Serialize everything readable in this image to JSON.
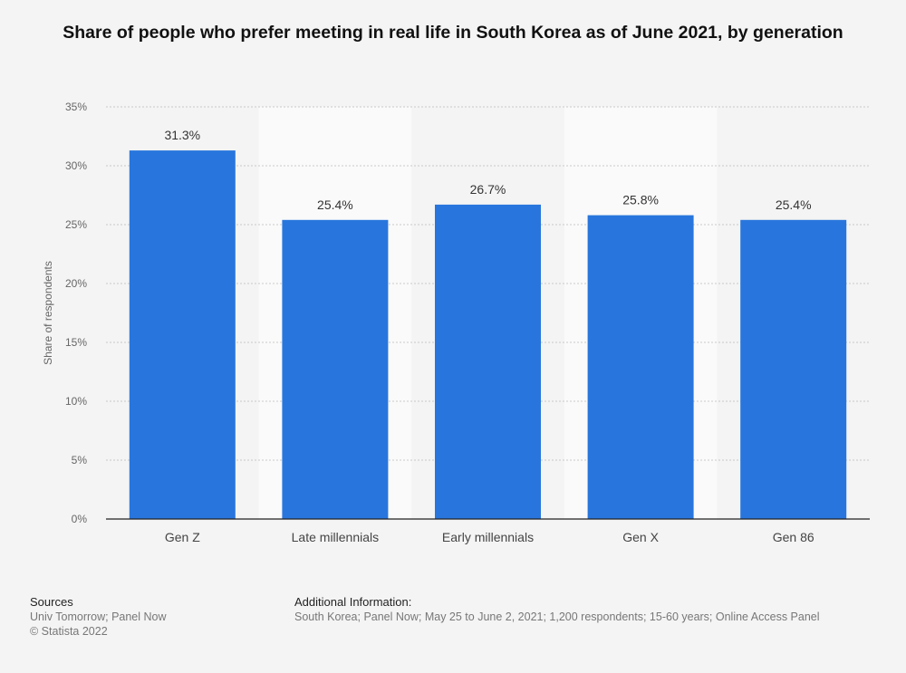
{
  "chart_data": {
    "type": "bar",
    "title": "Share of people who prefer meeting in real life in South Korea as of June 2021, by generation",
    "categories": [
      "Gen Z",
      "Late millennials",
      "Early millennials",
      "Gen X",
      "Gen 86"
    ],
    "values": [
      31.3,
      25.4,
      26.7,
      25.8,
      25.4
    ],
    "value_labels": [
      "31.3%",
      "25.4%",
      "26.7%",
      "25.8%",
      "25.4%"
    ],
    "xlabel": "",
    "ylabel": "Share of respondents",
    "ylim": [
      0,
      35
    ],
    "yticks": [
      0,
      5,
      10,
      15,
      20,
      25,
      30,
      35
    ],
    "ytick_labels": [
      "0%",
      "5%",
      "10%",
      "15%",
      "20%",
      "25%",
      "30%",
      "35%"
    ],
    "grid": true,
    "bar_color": "#2876dd"
  },
  "footer": {
    "sources_heading": "Sources",
    "sources_lines": [
      "Univ Tomorrow; Panel Now",
      "© Statista 2022"
    ],
    "additional_heading": "Additional Information:",
    "additional_text": "South Korea; Panel Now; May 25 to June 2, 2021; 1,200 respondents; 15-60 years; Online Access Panel"
  }
}
